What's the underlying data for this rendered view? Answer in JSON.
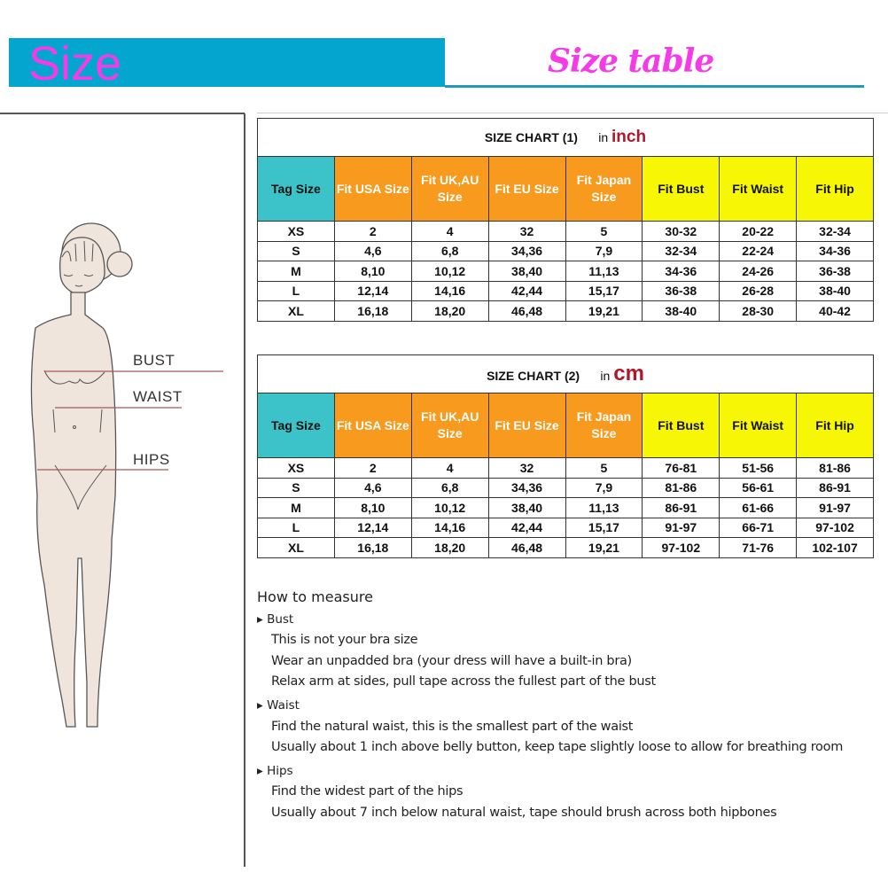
{
  "header": {
    "title": "Size",
    "subtitle": "Size table"
  },
  "figure": {
    "labels": {
      "bust": "BUST",
      "waist": "WAIST",
      "hips": "HIPS"
    }
  },
  "colors": {
    "banner": "#04a6cf",
    "title_pink": "#f53be8",
    "tag_header": "#3cc3c9",
    "fit_header": "#f79a1e",
    "body_header": "#f7f705",
    "unit_red": "#b0182a"
  },
  "headers": [
    "Tag Size",
    "Fit USA Size",
    "Fit UK,AU Size",
    "Fit EU Size",
    "Fit Japan Size",
    "Fit Bust",
    "Fit Waist",
    "Fit Hip"
  ],
  "chart1": {
    "title": "SIZE CHART (1)",
    "in": "in",
    "unit": "inch",
    "rows": [
      [
        "XS",
        "2",
        "4",
        "32",
        "5",
        "30-32",
        "20-22",
        "32-34"
      ],
      [
        "S",
        "4,6",
        "6,8",
        "34,36",
        "7,9",
        "32-34",
        "22-24",
        "34-36"
      ],
      [
        "M",
        "8,10",
        "10,12",
        "38,40",
        "11,13",
        "34-36",
        "24-26",
        "36-38"
      ],
      [
        "L",
        "12,14",
        "14,16",
        "42,44",
        "15,17",
        "36-38",
        "26-28",
        "38-40"
      ],
      [
        "XL",
        "16,18",
        "18,20",
        "46,48",
        "19,21",
        "38-40",
        "28-30",
        "40-42"
      ]
    ]
  },
  "chart2": {
    "title": "SIZE CHART (2)",
    "in": "in",
    "unit": "cm",
    "rows": [
      [
        "XS",
        "2",
        "4",
        "32",
        "5",
        "76-81",
        "51-56",
        "81-86"
      ],
      [
        "S",
        "4,6",
        "6,8",
        "34,36",
        "7,9",
        "81-86",
        "56-61",
        "86-91"
      ],
      [
        "M",
        "8,10",
        "10,12",
        "38,40",
        "11,13",
        "86-91",
        "61-66",
        "91-97"
      ],
      [
        "L",
        "12,14",
        "14,16",
        "42,44",
        "15,17",
        "91-97",
        "66-71",
        "97-102"
      ],
      [
        "XL",
        "16,18",
        "18,20",
        "46,48",
        "19,21",
        "97-102",
        "71-76",
        "102-107"
      ]
    ]
  },
  "measure": {
    "heading": "How to measure",
    "sections": [
      {
        "title": "Bust",
        "lines": [
          "This is not your bra size",
          "Wear an unpadded bra (your dress will have a built-in bra)",
          "Relax arm at sides, pull tape across the fullest part of the bust"
        ]
      },
      {
        "title": "Waist",
        "lines": [
          "Find the natural waist, this is the smallest part of the waist",
          "Usually about 1 inch above belly button, keep tape slightly loose to allow for breathing room"
        ]
      },
      {
        "title": "Hips",
        "lines": [
          "Find the widest part of the hips",
          "Usually about 7 inch below natural waist, tape should brush across both hipbones"
        ]
      }
    ]
  }
}
